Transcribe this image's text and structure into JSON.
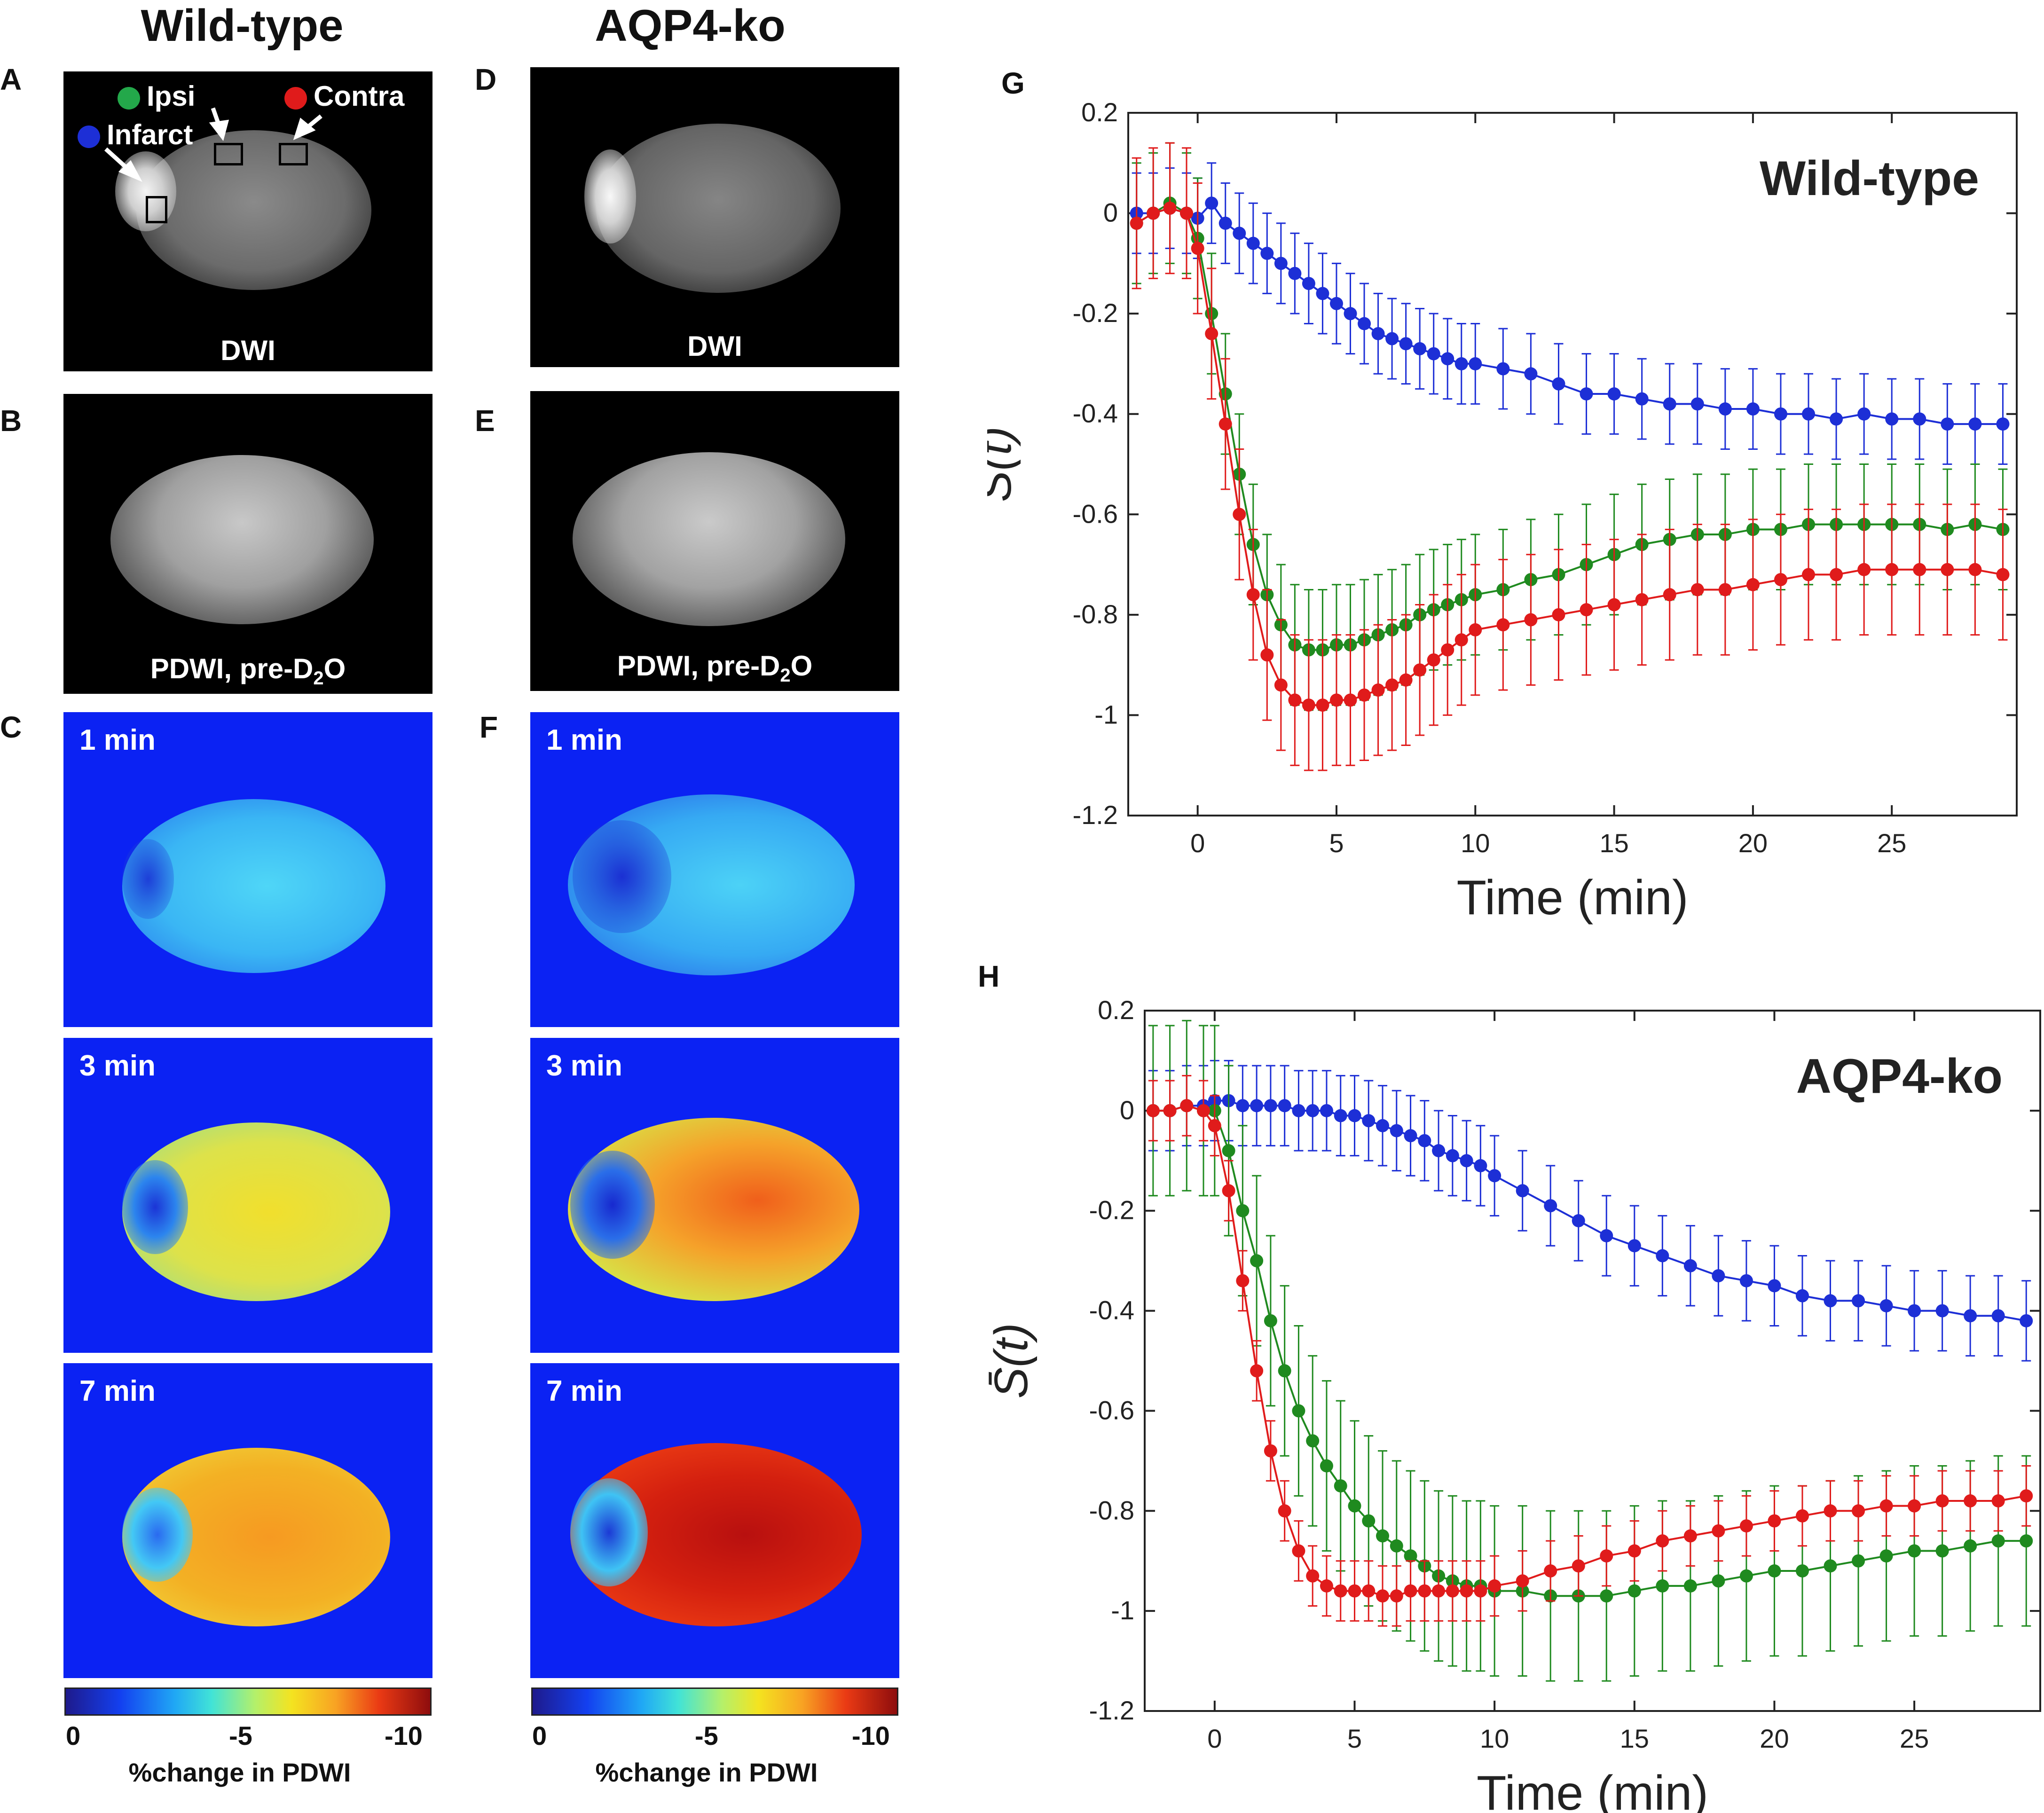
{
  "columns": {
    "wt_title": "Wild-type",
    "ko_title": "AQP4-ko"
  },
  "panels": {
    "A": "A",
    "B": "B",
    "C": "C",
    "D": "D",
    "E": "E",
    "F": "F",
    "G": "G",
    "H": "H"
  },
  "legend": {
    "ipsi": "Ipsi",
    "contra": "Contra",
    "infarct": "Infarct"
  },
  "mri": {
    "dwi_label": "DWI",
    "pdwi_label_main": "PDWI, pre-D",
    "pdwi_sub": "2",
    "pdwi_tail": "O"
  },
  "maps": {
    "t1": "1 min",
    "t3": "3 min",
    "t7": "7 min"
  },
  "colorbar": {
    "ticks": [
      "0",
      "-5",
      "-10"
    ],
    "title": "%change in PDWI"
  },
  "colors": {
    "infarct": "#1d2fd6",
    "ipsi": "#1f8a1f",
    "contra": "#e01b1b",
    "map_bg": "#0b22f3"
  },
  "chart_data": [
    {
      "id": "G",
      "type": "scatter",
      "title": "Wild-type",
      "xlabel": "Time (min)",
      "ylabel": "S̄(t)",
      "xlim": [
        -2.5,
        29.5
      ],
      "ylim": [
        -1.2,
        0.2
      ],
      "xticks": [
        0,
        5,
        10,
        15,
        20,
        25
      ],
      "yticks": [
        0.2,
        0,
        -0.2,
        -0.4,
        -0.6,
        -0.8,
        -1,
        -1.2
      ],
      "ytick_labels": [
        "0.2",
        "0",
        "-0.2",
        "-0.4",
        "-0.6",
        "-0.8",
        "-1",
        "-1.2"
      ],
      "series": [
        {
          "name": "Infarct",
          "color": "#1d2fd6",
          "t": [
            -2.2,
            -1.6,
            -1,
            -0.4,
            0,
            0.5,
            1,
            1.5,
            2,
            2.5,
            3,
            3.5,
            4,
            4.5,
            5,
            5.5,
            6,
            6.5,
            7,
            7.5,
            8,
            8.5,
            9,
            9.5,
            10,
            11,
            12,
            13,
            14,
            15,
            16,
            17,
            18,
            19,
            20,
            21,
            22,
            23,
            24,
            25,
            26,
            27,
            28,
            29
          ],
          "y": [
            0,
            0,
            0.01,
            0,
            -0.01,
            0.02,
            -0.02,
            -0.04,
            -0.06,
            -0.08,
            -0.1,
            -0.12,
            -0.14,
            -0.16,
            -0.18,
            -0.2,
            -0.22,
            -0.24,
            -0.25,
            -0.26,
            -0.27,
            -0.28,
            -0.29,
            -0.3,
            -0.3,
            -0.31,
            -0.32,
            -0.34,
            -0.36,
            -0.36,
            -0.37,
            -0.38,
            -0.38,
            -0.39,
            -0.39,
            -0.4,
            -0.4,
            -0.41,
            -0.4,
            -0.41,
            -0.41,
            -0.42,
            -0.42,
            -0.42
          ],
          "err": 0.08
        },
        {
          "name": "Ipsi",
          "color": "#1f8a1f",
          "t": [
            -2.2,
            -1.6,
            -1,
            -0.4,
            0,
            0.5,
            1,
            1.5,
            2,
            2.5,
            3,
            3.5,
            4,
            4.5,
            5,
            5.5,
            6,
            6.5,
            7,
            7.5,
            8,
            8.5,
            9,
            9.5,
            10,
            11,
            12,
            13,
            14,
            15,
            16,
            17,
            18,
            19,
            20,
            21,
            22,
            23,
            24,
            25,
            26,
            27,
            28,
            29
          ],
          "y": [
            -0.02,
            0,
            0.02,
            0,
            -0.05,
            -0.2,
            -0.36,
            -0.52,
            -0.66,
            -0.76,
            -0.82,
            -0.86,
            -0.87,
            -0.87,
            -0.86,
            -0.86,
            -0.85,
            -0.84,
            -0.83,
            -0.82,
            -0.8,
            -0.79,
            -0.78,
            -0.77,
            -0.76,
            -0.75,
            -0.73,
            -0.72,
            -0.7,
            -0.68,
            -0.66,
            -0.65,
            -0.64,
            -0.64,
            -0.63,
            -0.63,
            -0.62,
            -0.62,
            -0.62,
            -0.62,
            -0.62,
            -0.63,
            -0.62,
            -0.63
          ],
          "err": 0.12
        },
        {
          "name": "Contra",
          "color": "#e01b1b",
          "t": [
            -2.2,
            -1.6,
            -1,
            -0.4,
            0,
            0.5,
            1,
            1.5,
            2,
            2.5,
            3,
            3.5,
            4,
            4.5,
            5,
            5.5,
            6,
            6.5,
            7,
            7.5,
            8,
            8.5,
            9,
            9.5,
            10,
            11,
            12,
            13,
            14,
            15,
            16,
            17,
            18,
            19,
            20,
            21,
            22,
            23,
            24,
            25,
            26,
            27,
            28,
            29
          ],
          "y": [
            -0.02,
            0,
            0.01,
            0,
            -0.07,
            -0.24,
            -0.42,
            -0.6,
            -0.76,
            -0.88,
            -0.94,
            -0.97,
            -0.98,
            -0.98,
            -0.97,
            -0.97,
            -0.96,
            -0.95,
            -0.94,
            -0.93,
            -0.91,
            -0.89,
            -0.87,
            -0.85,
            -0.83,
            -0.82,
            -0.81,
            -0.8,
            -0.79,
            -0.78,
            -0.77,
            -0.76,
            -0.75,
            -0.75,
            -0.74,
            -0.73,
            -0.72,
            -0.72,
            -0.71,
            -0.71,
            -0.71,
            -0.71,
            -0.71,
            -0.72
          ],
          "err": 0.13
        }
      ]
    },
    {
      "id": "H",
      "type": "scatter",
      "title": "AQP4-ko",
      "xlabel": "Time (min)",
      "ylabel": "S̄(t)",
      "xlim": [
        -2.5,
        29.5
      ],
      "ylim": [
        -1.2,
        0.2
      ],
      "xticks": [
        0,
        5,
        10,
        15,
        20,
        25
      ],
      "yticks": [
        0.2,
        0,
        -0.2,
        -0.4,
        -0.6,
        -0.8,
        -1,
        -1.2
      ],
      "ytick_labels": [
        "0.2",
        "0",
        "-0.2",
        "-0.4",
        "-0.6",
        "-0.8",
        "-1",
        "-1.2"
      ],
      "series": [
        {
          "name": "Infarct",
          "color": "#1d2fd6",
          "t": [
            -2.2,
            -1.6,
            -1,
            -0.4,
            0,
            0.5,
            1,
            1.5,
            2,
            2.5,
            3,
            3.5,
            4,
            4.5,
            5,
            5.5,
            6,
            6.5,
            7,
            7.5,
            8,
            8.5,
            9,
            9.5,
            10,
            11,
            12,
            13,
            14,
            15,
            16,
            17,
            18,
            19,
            20,
            21,
            22,
            23,
            24,
            25,
            26,
            27,
            28,
            29
          ],
          "y": [
            0,
            0,
            0.01,
            0.01,
            0.02,
            0.02,
            0.01,
            0.01,
            0.01,
            0.01,
            0,
            0,
            0,
            -0.01,
            -0.01,
            -0.02,
            -0.03,
            -0.04,
            -0.05,
            -0.06,
            -0.08,
            -0.09,
            -0.1,
            -0.11,
            -0.13,
            -0.16,
            -0.19,
            -0.22,
            -0.25,
            -0.27,
            -0.29,
            -0.31,
            -0.33,
            -0.34,
            -0.35,
            -0.37,
            -0.38,
            -0.38,
            -0.39,
            -0.4,
            -0.4,
            -0.41,
            -0.41,
            -0.42
          ],
          "err": 0.08
        },
        {
          "name": "Ipsi",
          "color": "#1f8a1f",
          "t": [
            -2.2,
            -1.6,
            -1,
            -0.4,
            0,
            0.5,
            1,
            1.5,
            2,
            2.5,
            3,
            3.5,
            4,
            4.5,
            5,
            5.5,
            6,
            6.5,
            7,
            7.5,
            8,
            8.5,
            9,
            9.5,
            10,
            11,
            12,
            13,
            14,
            15,
            16,
            17,
            18,
            19,
            20,
            21,
            22,
            23,
            24,
            25,
            26,
            27,
            28,
            29
          ],
          "y": [
            0,
            0,
            0.01,
            0,
            0,
            -0.08,
            -0.2,
            -0.3,
            -0.42,
            -0.52,
            -0.6,
            -0.66,
            -0.71,
            -0.75,
            -0.79,
            -0.82,
            -0.85,
            -0.87,
            -0.89,
            -0.91,
            -0.93,
            -0.94,
            -0.95,
            -0.95,
            -0.96,
            -0.96,
            -0.97,
            -0.97,
            -0.97,
            -0.96,
            -0.95,
            -0.95,
            -0.94,
            -0.93,
            -0.92,
            -0.92,
            -0.91,
            -0.9,
            -0.89,
            -0.88,
            -0.88,
            -0.87,
            -0.86,
            -0.86
          ],
          "err": 0.17
        },
        {
          "name": "Contra",
          "color": "#e01b1b",
          "t": [
            -2.2,
            -1.6,
            -1,
            -0.4,
            0,
            0.5,
            1,
            1.5,
            2,
            2.5,
            3,
            3.5,
            4,
            4.5,
            5,
            5.5,
            6,
            6.5,
            7,
            7.5,
            8,
            8.5,
            9,
            9.5,
            10,
            11,
            12,
            13,
            14,
            15,
            16,
            17,
            18,
            19,
            20,
            21,
            22,
            23,
            24,
            25,
            26,
            27,
            28,
            29
          ],
          "y": [
            0,
            0,
            0.01,
            0,
            -0.03,
            -0.16,
            -0.34,
            -0.52,
            -0.68,
            -0.8,
            -0.88,
            -0.93,
            -0.95,
            -0.96,
            -0.96,
            -0.96,
            -0.97,
            -0.97,
            -0.96,
            -0.96,
            -0.96,
            -0.96,
            -0.96,
            -0.96,
            -0.95,
            -0.94,
            -0.92,
            -0.91,
            -0.89,
            -0.88,
            -0.86,
            -0.85,
            -0.84,
            -0.83,
            -0.82,
            -0.81,
            -0.8,
            -0.8,
            -0.79,
            -0.79,
            -0.78,
            -0.78,
            -0.78,
            -0.77
          ],
          "err": 0.06
        }
      ]
    }
  ]
}
